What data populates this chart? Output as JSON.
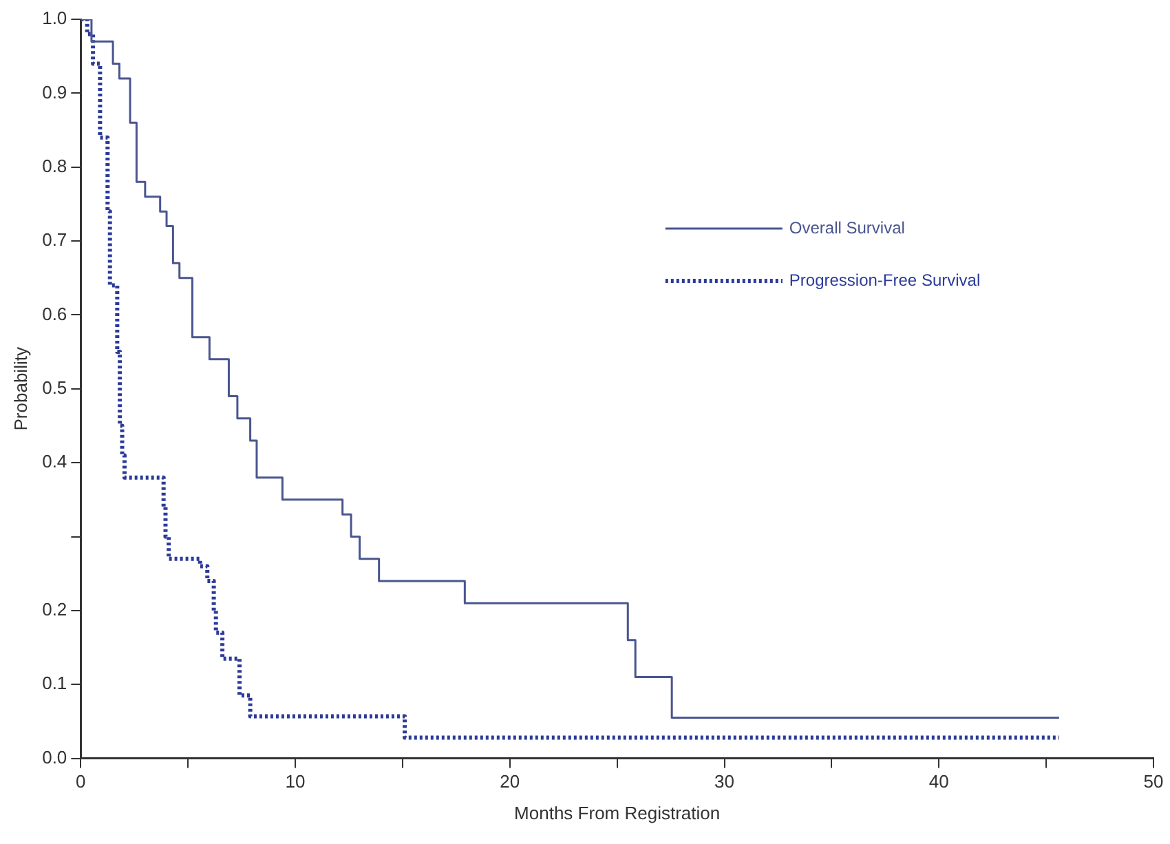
{
  "chart_data": {
    "type": "step",
    "xlabel": "Months From Registration",
    "ylabel": "Probability",
    "xlim": [
      0,
      50
    ],
    "ylim": [
      0,
      1
    ],
    "xticks": [
      0,
      {
        "value": 5,
        "label": null
      },
      10,
      {
        "value": 15,
        "label": null
      },
      20,
      {
        "value": 25,
        "label": null
      },
      30,
      {
        "value": 35,
        "label": null
      },
      40,
      {
        "value": 45,
        "label": null
      },
      50
    ],
    "yticks": [
      {
        "value": 0,
        "label": "0.0"
      },
      0.1,
      0.2,
      {
        "value": 0.3,
        "label": null
      },
      0.4,
      0.5,
      0.6,
      0.7,
      0.8,
      0.9,
      {
        "value": 1,
        "label": "1.0"
      }
    ],
    "grid": false,
    "legend": "top right",
    "series": [
      {
        "name": "Overall Survival",
        "color": "#4a5590",
        "line_style": "solid",
        "x": [
          0,
          0.5,
          1.5,
          1.8,
          2.3,
          2.6,
          3.0,
          3.7,
          4.0,
          4.3,
          4.6,
          5.2,
          6.0,
          6.9,
          7.3,
          7.9,
          8.2,
          9.4,
          12.2,
          12.6,
          13.0,
          13.9,
          17.9,
          25.5,
          25.85,
          27.55,
          45.6
        ],
        "values": [
          1.0,
          0.97,
          0.94,
          0.92,
          0.86,
          0.78,
          0.76,
          0.74,
          0.72,
          0.67,
          0.65,
          0.57,
          0.54,
          0.49,
          0.46,
          0.43,
          0.38,
          0.35,
          0.33,
          0.3,
          0.27,
          0.24,
          0.21,
          0.16,
          0.11,
          0.055,
          0.055
        ]
      },
      {
        "name": "Progression-Free Survival",
        "color": "#2b3a9a",
        "line_style": "dotted",
        "x": [
          0,
          0.3,
          0.57,
          0.9,
          1.25,
          1.36,
          1.7,
          1.82,
          1.93,
          2.04,
          3.86,
          3.95,
          4.1,
          5.56,
          5.9,
          6.2,
          6.3,
          6.6,
          7.4,
          7.9,
          15.1,
          45.6
        ],
        "values": [
          1.0,
          0.98,
          0.94,
          0.84,
          0.74,
          0.64,
          0.55,
          0.45,
          0.41,
          0.38,
          0.34,
          0.3,
          0.27,
          0.26,
          0.24,
          0.2,
          0.17,
          0.135,
          0.085,
          0.057,
          0.028,
          0.028
        ]
      }
    ]
  }
}
